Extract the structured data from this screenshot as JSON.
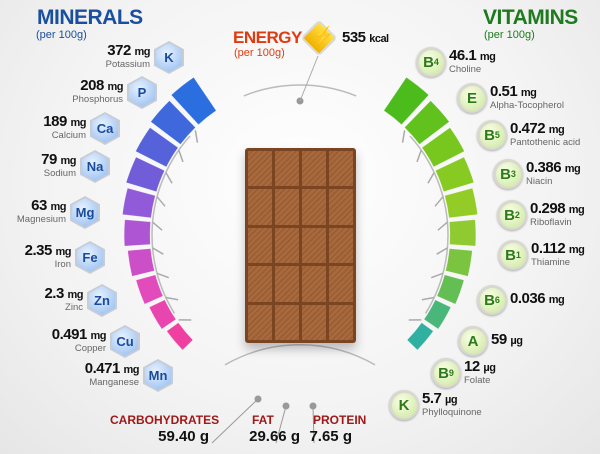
{
  "minerals": {
    "title": "MINERALS",
    "subtitle": "(per 100g)",
    "items": [
      {
        "symbol": "K",
        "value": "372",
        "unit": "mg",
        "name": "Potassium"
      },
      {
        "symbol": "P",
        "value": "208",
        "unit": "mg",
        "name": "Phosphorus"
      },
      {
        "symbol": "Ca",
        "value": "189",
        "unit": "mg",
        "name": "Calcium"
      },
      {
        "symbol": "Na",
        "value": "79",
        "unit": "mg",
        "name": "Sodium"
      },
      {
        "symbol": "Mg",
        "value": "63",
        "unit": "mg",
        "name": "Magnesium"
      },
      {
        "symbol": "Fe",
        "value": "2.35",
        "unit": "mg",
        "name": "Iron"
      },
      {
        "symbol": "Zn",
        "value": "2.3",
        "unit": "mg",
        "name": "Zinc"
      },
      {
        "symbol": "Cu",
        "value": "0.491",
        "unit": "mg",
        "name": "Copper"
      },
      {
        "symbol": "Mn",
        "value": "0.471",
        "unit": "mg",
        "name": "Manganese"
      }
    ]
  },
  "vitamins": {
    "title": "VITAMINS",
    "subtitle": "(per 100g)",
    "items": [
      {
        "letter": "B",
        "sub": "4",
        "value": "46.1",
        "unit": "mg",
        "name": "Choline"
      },
      {
        "letter": "E",
        "sub": "",
        "value": "0.51",
        "unit": "mg",
        "name": "Alpha-Tocopherol"
      },
      {
        "letter": "B",
        "sub": "5",
        "value": "0.472",
        "unit": "mg",
        "name": "Pantothenic acid"
      },
      {
        "letter": "B",
        "sub": "3",
        "value": "0.386",
        "unit": "mg",
        "name": "Niacin"
      },
      {
        "letter": "B",
        "sub": "2",
        "value": "0.298",
        "unit": "mg",
        "name": "Riboflavin"
      },
      {
        "letter": "B",
        "sub": "1",
        "value": "0.112",
        "unit": "mg",
        "name": "Thiamine"
      },
      {
        "letter": "B",
        "sub": "6",
        "value": "0.036",
        "unit": "mg",
        "name": ""
      },
      {
        "letter": "A",
        "sub": "",
        "value": "59",
        "unit": "µg",
        "name": ""
      },
      {
        "letter": "B",
        "sub": "9",
        "value": "12",
        "unit": "µg",
        "name": "Folate"
      },
      {
        "letter": "K",
        "sub": "",
        "value": "5.7",
        "unit": "µg",
        "name": "Phylloquinone"
      }
    ]
  },
  "energy": {
    "title": "ENERGY",
    "subtitle": "(per 100g)",
    "value": "535",
    "unit": "kcal",
    "icon": "lightning-icon"
  },
  "macros": [
    {
      "name": "CARBOHYDRATES",
      "value": "59.40",
      "unit": "g"
    },
    {
      "name": "FAT",
      "value": "29.66",
      "unit": "g"
    },
    {
      "name": "PROTEIN",
      "value": "7.65",
      "unit": "g"
    }
  ],
  "colors": {
    "minerals_title": "#1a4fa0",
    "vitamins_title": "#1e7a1e",
    "energy_title": "#e03a10",
    "macro_label": "#a01818",
    "chocolate": "#a0643a"
  }
}
